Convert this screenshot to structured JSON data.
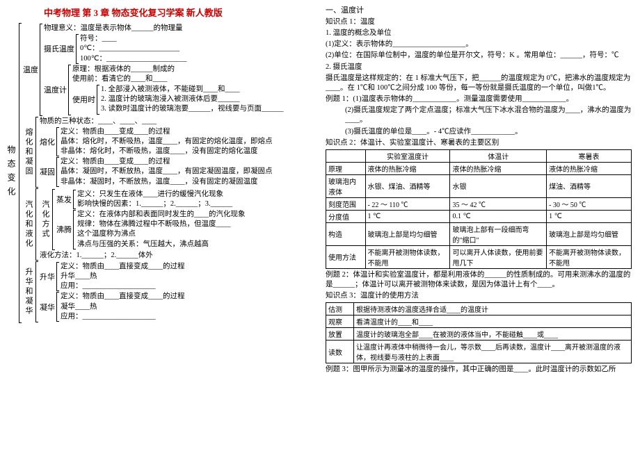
{
  "title": "中考物理 第 3 章 物态变化复习学案 新人教版",
  "root": "物态变化",
  "wendu": {
    "label": "温度",
    "meaning": "物理意义：温度是表示物体______的物理量",
    "sheshi": {
      "label": "摄氏温度",
      "l1": "符号：____",
      "l2": "0℃：______________________",
      "l3": "100℃：______________________"
    },
    "wenduji": {
      "label": "温度计",
      "l1": "原理：根据液体的______制成的",
      "l2": "使用前：看清它的____和____",
      "shiyong": {
        "label": "使用时",
        "l1": "1. 全部浸入被测液体，不能碰到____和____",
        "l2": "2. 温度计的玻璃泡浸入被测液体后要______",
        "l3": "3. 读数时温度计的玻璃泡要______，视线要与页面______"
      }
    }
  },
  "ronghua": {
    "label": "熔化和凝固",
    "states": "物质的三种状态：____、____、____",
    "rh": {
      "label": "熔化",
      "l1": "定义：物质由____变成____的过程",
      "l2": "晶体：熔化时，不断吸热，温度____，有固定的熔化温度，即熔点",
      "l3": "非晶体：熔化时，不断吸热，温度____，没有固定的熔化温度"
    },
    "ng": {
      "label": "凝固",
      "l1": "定义：物质由____变成____的过程",
      "l2": "晶体：凝固时，不断放热，温度____，有固定凝固温度，即凝固点",
      "l3": "非晶体：凝固时，不断放热，温度____，没有固定的凝固温度"
    }
  },
  "qihua": {
    "label": "汽化和液化",
    "qhfs": {
      "label": "汽化方式",
      "zf": {
        "label": "蒸发",
        "l1": "定义：只发生在液体____进行的缓慢汽化现象",
        "l2": "影响快慢的因素：1.______；2.______；3.______"
      },
      "ft": {
        "label": "沸腾",
        "l1": "定义：在液体内部和表面同时发生的____的汽化现象",
        "l2": "规律：物体在沸腾过程中不断吸热，但温度____",
        "l3": "这个温度称为沸点",
        "l4": "沸点与压强的关系：气压越大，沸点越高"
      }
    },
    "yh": "液化方法：1.______；2.______体外"
  },
  "shenghua": {
    "label": "升华和凝华",
    "sh": {
      "label": "升华",
      "l1": "定义：物质由____直接变成____的过程",
      "l2": "升华____热",
      "l3": "应用：____________________"
    },
    "nh": {
      "label": "凝华",
      "l1": "定义：物质由____直接变成____的过程",
      "l2": "凝华____热",
      "l3": "应用：____________________"
    }
  },
  "right": {
    "h1": "一、温度计",
    "p1": "知识点 1：温度",
    "p2": "1. 温度的概念及单位",
    "p3": "(1)定义：表示物体的____________________。",
    "p4": "(2)单位：在国际单位制中，温度的单位是开尔文，符号：K 。常用单位：______，符号：℃",
    "p5": "2. 摄氏温度",
    "p6": "摄氏温度是这样规定的：在 1 标准大气压下，把______的温度规定为 0℃，把沸水的温度规定为____。在 1℃和 100℃之间分成 100 等份，每一等份就是摄氏温度的一个单位，叫做1℃。",
    "p7": "例题 1：(1)温度表示物体的____________。测量温度需要使用____________。",
    "p8": "(2)摄氏温度规定了两个定点温度；标准大气压下冰水混合物的温度为____，沸水的温度为____。",
    "p9": "(3)摄氏温度的单位是____。- 4℃应读作____________。",
    "p10": "知识点 2：体温计、实验室温度计、寒暑表的主要区别",
    "table1": {
      "headers": [
        "",
        "实验室温度计",
        "体温计",
        "寒暑表"
      ],
      "rows": [
        [
          "原理",
          "液体的热胀冷缩",
          "液体的热胀冷缩",
          "液体的热胀冷缩"
        ],
        [
          "玻璃泡内液体",
          "水银、煤油、酒精等",
          "水银",
          "煤油、酒精等"
        ],
        [
          "刻度范围",
          "- 22 ～ 110 ℃",
          "35 ～ 42 ℃",
          "- 30 ～ 50 ℃"
        ],
        [
          "分度值",
          "1 ℃",
          "0.1 ℃",
          "1 ℃"
        ],
        [
          "构造",
          "玻璃泡上部是均匀细管",
          "玻璃泡上部有一段细而弯的\"缩口\"",
          "玻璃泡上部是均匀细管"
        ],
        [
          "使用方法",
          "不能离开被测物体读数，不能甩",
          "可以离开人体读数，使用前要甩几下",
          "不能离开被测物体读数，不能甩"
        ]
      ]
    },
    "p11": "例题 2：体温计和实验室温度计，都是利用液体的______的性质制成的。可用来测沸水的温度的是______；体温计可以离开被测物体来读数，是因为体温计上有个____。",
    "p12": "知识点 3：温度计的使用方法",
    "table2": {
      "rows": [
        [
          "估测",
          "根据待测液体的温度选择合适____的温度计"
        ],
        [
          "观察",
          "看清温度计的____和____"
        ],
        [
          "放置",
          "温度计的玻璃泡全部____在被测的液体当中，不能碰触____或____"
        ],
        [
          "读数",
          "让温度计再液体中稍微待一会儿，等示数____后再读数，温度计____离开被测温度的液体，视线要与液柱的上表面____"
        ]
      ]
    },
    "p13": "例题 3：图甲所示为测量冰的温度的操作，其中正确的图是____。此时温度计的示数如乙所"
  }
}
